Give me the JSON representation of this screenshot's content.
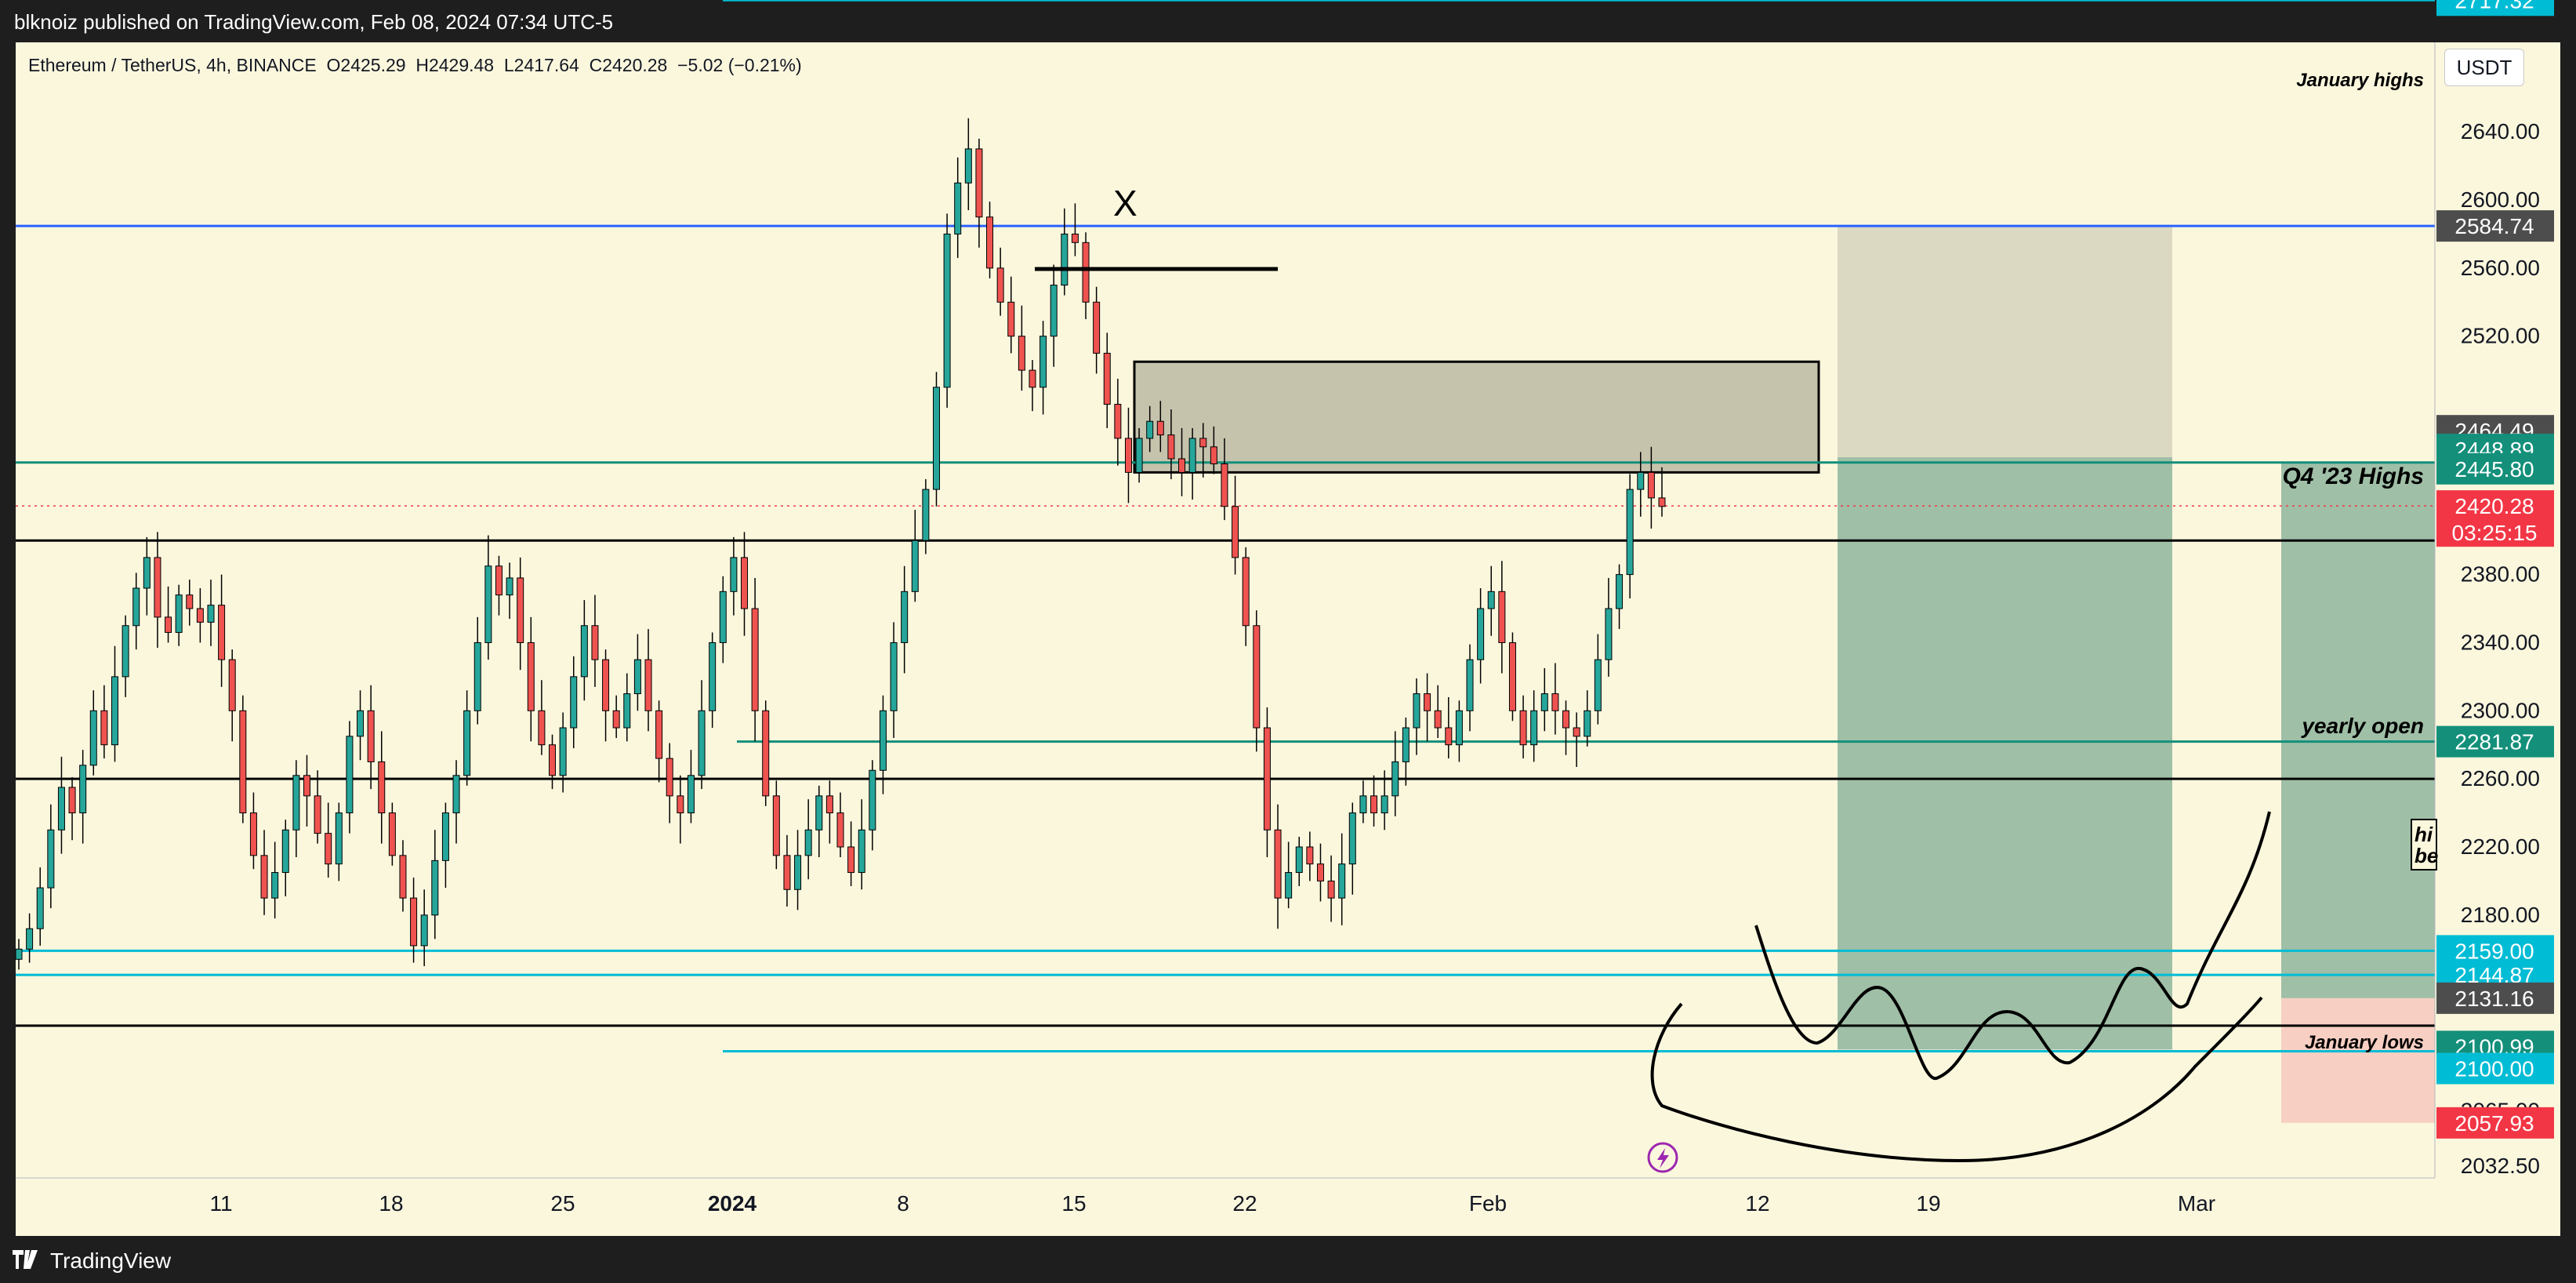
{
  "header": {
    "published_by": "blknoiz published on TradingView.com, Feb 08, 2024 07:34 UTC-5"
  },
  "legend": {
    "symbol": "Ethereum / TetherUS, 4h, BINANCE",
    "open": "O2425.29",
    "high": "H2429.48",
    "low": "L2417.64",
    "close": "C2420.28",
    "change": "−5.02 (−0.21%)"
  },
  "currency_button": "USDT",
  "footer": {
    "brand": "TradingView"
  },
  "colors": {
    "background": "#fbf7dd",
    "up_candle": "#26a69a",
    "down_candle": "#ef5350",
    "cyan_level": "#00bcd4",
    "blue_level": "#2962ff",
    "teal_level": "#138f7a",
    "black_level": "#000000",
    "price_tag": "#f23645",
    "target_zone": "#9fbfa7",
    "stop_zone": "#f7cfc3",
    "grey_zone": "#dcd9c3"
  },
  "annotations": {
    "x_mark": "X",
    "q4_highs": "Q4 '23 Highs",
    "january_highs": "January highs",
    "yearly_open": "yearly open",
    "january_lows": "January lows",
    "cut_label_1": "hi",
    "cut_label_2": "be",
    "events_icon": "lightning-icon"
  },
  "chart_data": {
    "type": "candlestick",
    "title": "Ethereum / TetherUS, 4h, BINANCE",
    "x_axis_labels": [
      "11",
      "18",
      "25",
      "2024",
      "8",
      "15",
      "22",
      "Feb",
      "12",
      "19",
      "Mar"
    ],
    "y_axis_labels": [
      2640.0,
      2600.0,
      2560.0,
      2520.0,
      2380.0,
      2340.0,
      2300.0,
      2260.0,
      2220.0,
      2180.0,
      2032.5
    ],
    "y_axis_partial": [
      "2065.00"
    ],
    "ylim": [
      2000,
      2730
    ],
    "price_tags": [
      {
        "value": "2717.32",
        "color": "#00bcd4"
      },
      {
        "value": "2584.74",
        "color": "#4d4d4d"
      },
      {
        "value": "2464.49",
        "color": "#4d4d4d"
      },
      {
        "value": "2448.89",
        "color": "#138f7a"
      },
      {
        "value": "2445.80",
        "color": "#138f7a"
      },
      {
        "value": "2420.28",
        "color": "#f23645",
        "countdown": "03:25:15"
      },
      {
        "value": "2281.87",
        "color": "#138f7a"
      },
      {
        "value": "2159.00",
        "color": "#00bcd4"
      },
      {
        "value": "2144.87",
        "color": "#00bcd4"
      },
      {
        "value": "2131.16",
        "color": "#4d4d4d"
      },
      {
        "value": "2100.99",
        "color": "#138f7a"
      },
      {
        "value": "2100.00",
        "color": "#00bcd4"
      },
      {
        "value": "2057.93",
        "color": "#f23645"
      }
    ],
    "horizontal_levels": [
      {
        "price": 2717.32,
        "color": "cyan",
        "label": "January highs"
      },
      {
        "price": 2584.74,
        "color": "blue"
      },
      {
        "price": 2445.8,
        "color": "teal",
        "label": "Q4 '23 Highs"
      },
      {
        "price": 2400.0,
        "color": "black"
      },
      {
        "price": 2281.87,
        "color": "teal",
        "label": "yearly open"
      },
      {
        "price": 2260.0,
        "color": "black"
      },
      {
        "price": 2159.0,
        "color": "cyan"
      },
      {
        "price": 2144.87,
        "color": "cyan"
      },
      {
        "price": 2115.0,
        "color": "black"
      },
      {
        "price": 2100.0,
        "color": "cyan",
        "label": "January lows"
      }
    ],
    "zones": [
      {
        "name": "supply box",
        "from": 2440,
        "to": 2505
      },
      {
        "name": "long target",
        "from": 2100.99,
        "to": 2448.89
      },
      {
        "name": "long risk",
        "from": 2448.89,
        "to": 2584.74
      },
      {
        "name": "right target",
        "from": 2131.16,
        "to": 2448.89
      },
      {
        "name": "right stop",
        "from": 2057.93,
        "to": 2131.16
      }
    ],
    "last_price": 2420.28,
    "ohlc_path": [
      2160,
      2172,
      2196,
      2230,
      2255,
      2240,
      2268,
      2300,
      2280,
      2320,
      2350,
      2372,
      2390,
      2355,
      2346,
      2368,
      2360,
      2352,
      2362,
      2330,
      2300,
      2240,
      2215,
      2190,
      2205,
      2230,
      2262,
      2250,
      2228,
      2210,
      2240,
      2285,
      2300,
      2270,
      2240,
      2215,
      2190,
      2162,
      2180,
      2212,
      2240,
      2262,
      2300,
      2340,
      2385,
      2368,
      2378,
      2340,
      2300,
      2280,
      2262,
      2290,
      2320,
      2350,
      2330,
      2300,
      2290,
      2310,
      2330,
      2300,
      2272,
      2250,
      2240,
      2262,
      2300,
      2340,
      2370,
      2390,
      2360,
      2300,
      2250,
      2215,
      2195,
      2215,
      2230,
      2250,
      2240,
      2220,
      2205,
      2230,
      2265,
      2300,
      2340,
      2370,
      2400,
      2430,
      2490,
      2580,
      2610,
      2630,
      2590,
      2560,
      2540,
      2520,
      2500,
      2490,
      2520,
      2550,
      2580,
      2575,
      2540,
      2510,
      2480,
      2460,
      2440,
      2460,
      2470,
      2462,
      2448,
      2440,
      2460,
      2455,
      2445,
      2420,
      2390,
      2350,
      2290,
      2230,
      2190,
      2205,
      2220,
      2210,
      2200,
      2190,
      2210,
      2240,
      2250,
      2240,
      2250,
      2270,
      2290,
      2310,
      2300,
      2290,
      2280,
      2300,
      2330,
      2360,
      2370,
      2340,
      2300,
      2280,
      2300,
      2310,
      2300,
      2290,
      2285,
      2300,
      2330,
      2360,
      2380,
      2430,
      2440,
      2425,
      2420
    ]
  }
}
